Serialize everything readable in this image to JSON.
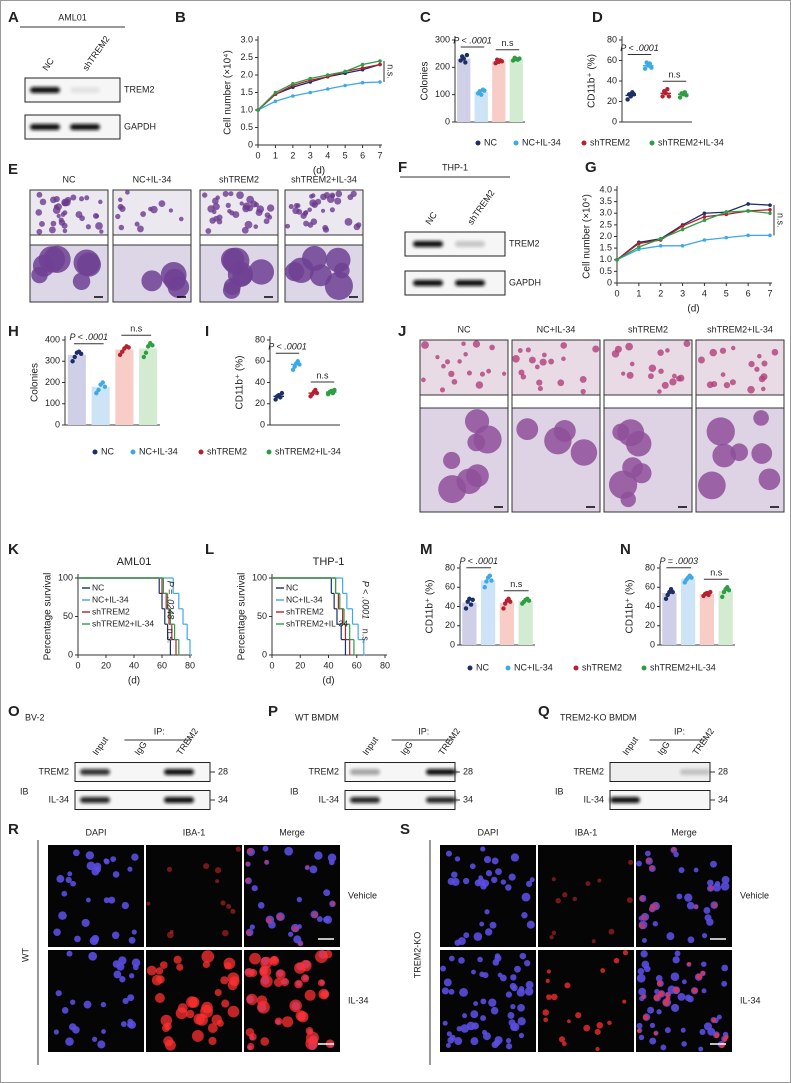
{
  "panels": [
    "A",
    "B",
    "C",
    "D",
    "E",
    "F",
    "G",
    "H",
    "I",
    "J",
    "K",
    "L",
    "M",
    "N",
    "O",
    "P",
    "Q",
    "R",
    "S"
  ],
  "groups": {
    "names": [
      "NC",
      "NC+IL-34",
      "shTREM2",
      "shTREM2+IL-34"
    ],
    "dot_colors": [
      "#1b2f66",
      "#3fa9e8",
      "#b81f2f",
      "#2e9e45"
    ],
    "bar_colors": [
      "#cfd0e8",
      "#cde4f6",
      "#f8cdc7",
      "#d3ecd1"
    ]
  },
  "chart_data": [
    {
      "type": "line",
      "ylabel": "Cell number (×10⁴)",
      "xlabel": "(d)",
      "x": [
        0,
        1,
        2,
        3,
        4,
        5,
        6,
        7
      ],
      "xlim": [
        0,
        7
      ],
      "xticks": [
        0,
        1,
        2,
        3,
        4,
        5,
        6,
        7
      ],
      "ylim": [
        0,
        3.0
      ],
      "yticks": [
        0,
        0.5,
        {
          "value": 1.0,
          "label": "1.0"
        },
        1.5,
        {
          "value": 2.0,
          "label": "2.0"
        },
        2.5,
        {
          "value": 3.0,
          "label": "3.0"
        }
      ],
      "series": [
        {
          "color": "#1b2f66",
          "values": [
            1,
            1.45,
            1.65,
            1.8,
            1.95,
            2.05,
            2.15,
            2.3
          ]
        },
        {
          "color": "#3fa9e8",
          "values": [
            1,
            1.25,
            1.4,
            1.5,
            1.6,
            1.7,
            1.78,
            1.8
          ]
        },
        {
          "color": "#b81f2f",
          "values": [
            1,
            1.45,
            1.7,
            1.85,
            1.95,
            2.1,
            2.2,
            2.3
          ]
        },
        {
          "color": "#2e9e45",
          "values": [
            1,
            1.5,
            1.75,
            1.9,
            2.0,
            2.1,
            2.3,
            2.4
          ]
        }
      ],
      "annotations": [
        "n.s."
      ]
    },
    {
      "type": "bar",
      "ylabel": "Colonies",
      "ylim": [
        0,
        300
      ],
      "yticks": [
        0,
        100,
        200,
        300
      ],
      "values": [
        232,
        110,
        222,
        230
      ],
      "points": [
        [
          225,
          240,
          232,
          218,
          245
        ],
        [
          105,
          112,
          100,
          118,
          115
        ],
        [
          215,
          228,
          220,
          225,
          222
        ],
        [
          225,
          235,
          230,
          228,
          232
        ]
      ],
      "annotations": [
        "P < .0001",
        "n.s"
      ]
    },
    {
      "type": "dot",
      "ylabel": "CD11b⁺ (%)",
      "ylim": [
        0,
        80
      ],
      "yticks": [
        0,
        20,
        40,
        60,
        80
      ],
      "values": [
        26,
        55,
        28,
        27
      ],
      "points": [
        [
          22,
          27,
          25,
          29,
          27
        ],
        [
          52,
          58,
          55,
          57,
          53
        ],
        [
          25,
          30,
          28,
          32,
          25
        ],
        [
          24,
          28,
          27,
          29,
          26
        ]
      ],
      "annotations": [
        "P < .0001",
        "n.s"
      ]
    },
    {
      "type": "line",
      "ylabel": "Cell number (×10⁴)",
      "xlabel": "(d)",
      "x": [
        0,
        1,
        2,
        3,
        4,
        5,
        6,
        7
      ],
      "xlim": [
        0,
        7
      ],
      "xticks": [
        0,
        1,
        2,
        3,
        4,
        5,
        6,
        7
      ],
      "ylim": [
        0,
        4.0
      ],
      "yticks": [
        0,
        0.5,
        {
          "value": 1.0,
          "label": "1.0"
        },
        1.5,
        {
          "value": 2.0,
          "label": "2.0"
        },
        2.5,
        {
          "value": 3.0,
          "label": "3.0"
        },
        3.5,
        {
          "value": 4.0,
          "label": "4.0"
        }
      ],
      "series": [
        {
          "color": "#1b2f66",
          "values": [
            1,
            1.75,
            1.9,
            2.5,
            3.0,
            3.05,
            3.4,
            3.35
          ]
        },
        {
          "color": "#3fa9e8",
          "values": [
            1,
            1.45,
            1.6,
            1.6,
            1.85,
            1.95,
            2.05,
            2.05
          ]
        },
        {
          "color": "#b81f2f",
          "values": [
            1,
            1.7,
            1.85,
            2.45,
            2.85,
            2.95,
            3.1,
            3.15
          ]
        },
        {
          "color": "#2e9e45",
          "values": [
            1,
            1.55,
            1.9,
            2.3,
            2.7,
            3.05,
            3.1,
            3.0
          ]
        }
      ],
      "annotations": [
        "n.s."
      ]
    },
    {
      "type": "bar",
      "ylabel": "Colonies",
      "ylim": [
        0,
        400
      ],
      "yticks": [
        0,
        100,
        200,
        300,
        400
      ],
      "values": [
        330,
        180,
        355,
        360
      ],
      "points": [
        [
          300,
          320,
          340,
          345,
          335
        ],
        [
          150,
          165,
          190,
          200,
          180
        ],
        [
          330,
          345,
          360,
          370,
          365
        ],
        [
          320,
          340,
          370,
          385,
          375
        ]
      ],
      "annotations": [
        "P < .0001",
        "n.s"
      ]
    },
    {
      "type": "dot",
      "ylabel": "CD11b⁺ (%)",
      "ylim": [
        0,
        80
      ],
      "yticks": [
        0,
        20,
        40,
        60,
        80
      ],
      "values": [
        27,
        57,
        30,
        31
      ],
      "points": [
        [
          24,
          27,
          28,
          26,
          30
        ],
        [
          52,
          55,
          58,
          60,
          57
        ],
        [
          27,
          29,
          31,
          33,
          30
        ],
        [
          29,
          31,
          32,
          30,
          33
        ]
      ],
      "annotations": [
        "P < .0001",
        "n.s"
      ]
    },
    {
      "type": "survival",
      "title": "AML01",
      "ylabel": "Percentage survival",
      "xlabel": "(d)",
      "xlim": [
        0,
        80
      ],
      "xticks": [
        0,
        20,
        40,
        60,
        80
      ],
      "ylim": [
        0,
        100
      ],
      "yticks": [
        0,
        50,
        100
      ],
      "series": [
        {
          "color": "#1b2f66",
          "x": [
            0,
            58,
            60,
            62,
            64,
            66
          ],
          "values": [
            100,
            80,
            60,
            40,
            20,
            0
          ]
        },
        {
          "color": "#3fa9e8",
          "x": [
            0,
            68,
            72,
            75,
            78,
            80
          ],
          "values": [
            100,
            80,
            60,
            40,
            20,
            0
          ]
        },
        {
          "color": "#b81f2f",
          "x": [
            0,
            60,
            63,
            65,
            67,
            70
          ],
          "values": [
            100,
            80,
            60,
            40,
            20,
            0
          ]
        },
        {
          "color": "#2e9e45",
          "x": [
            0,
            61,
            64,
            66,
            69,
            72
          ],
          "values": [
            100,
            80,
            60,
            40,
            20,
            0
          ]
        }
      ],
      "annotations": [
        "P = .0248",
        "n.s."
      ]
    },
    {
      "type": "survival",
      "title": "THP-1",
      "ylabel": "Percentage survival",
      "xlabel": "(d)",
      "xlim": [
        0,
        80
      ],
      "xticks": [
        0,
        20,
        40,
        60,
        80
      ],
      "ylim": [
        0,
        100
      ],
      "yticks": [
        0,
        50,
        100
      ],
      "series": [
        {
          "color": "#1b2f66",
          "x": [
            0,
            42,
            44,
            46,
            49,
            52
          ],
          "values": [
            100,
            80,
            60,
            40,
            20,
            0
          ]
        },
        {
          "color": "#3fa9e8",
          "x": [
            0,
            50,
            53,
            57,
            61,
            65
          ],
          "values": [
            100,
            80,
            60,
            40,
            20,
            0
          ]
        },
        {
          "color": "#b81f2f",
          "x": [
            0,
            45,
            47,
            50,
            52,
            55
          ],
          "values": [
            100,
            80,
            60,
            40,
            20,
            0
          ]
        },
        {
          "color": "#2e9e45",
          "x": [
            0,
            45,
            48,
            51,
            55,
            58
          ],
          "values": [
            100,
            80,
            60,
            40,
            20,
            0
          ]
        }
      ],
      "annotations": [
        "P < .0001",
        "n.s."
      ]
    },
    {
      "type": "bar",
      "ylabel": "CD11b⁺ (%)",
      "ylim": [
        0,
        80
      ],
      "yticks": [
        0,
        20,
        40,
        60,
        80
      ],
      "values": [
        44,
        67,
        44,
        46
      ],
      "points": [
        [
          38,
          45,
          48,
          42,
          47
        ],
        [
          60,
          66,
          70,
          72,
          67
        ],
        [
          38,
          43,
          46,
          48,
          45
        ],
        [
          43,
          45,
          47,
          48,
          46
        ]
      ],
      "annotations": [
        "P < .0001",
        "n.s"
      ]
    },
    {
      "type": "bar",
      "ylabel": "CD11b⁺ (%)",
      "ylim": [
        0,
        80
      ],
      "yticks": [
        0,
        20,
        40,
        60,
        80
      ],
      "values": [
        54,
        69,
        53,
        56
      ],
      "points": [
        [
          48,
          52,
          55,
          58,
          55
        ],
        [
          65,
          68,
          70,
          72,
          70
        ],
        [
          51,
          53,
          54,
          52,
          55
        ],
        [
          50,
          55,
          58,
          60,
          57
        ]
      ],
      "annotations": [
        "P = .0003",
        "n.s"
      ]
    }
  ],
  "blots": [
    {
      "cell": "AML01",
      "lanes": [
        "NC",
        "shTREM2"
      ],
      "rows": [
        "TREM2",
        "GAPDH"
      ]
    },
    {
      "cell": "THP-1",
      "lanes": [
        "NC",
        "shTREM2"
      ],
      "rows": [
        "TREM2",
        "GAPDH"
      ]
    },
    {
      "cell": "BV-2",
      "ip": "IP:",
      "lanes": [
        "Input",
        "IgG",
        "TREM2"
      ],
      "rows": [
        "TREM2",
        "IL-34"
      ],
      "markers": [
        "28",
        "34"
      ],
      "side": "IB"
    },
    {
      "cell": "WT BMDM",
      "ip": "IP:",
      "lanes": [
        "Input",
        "IgG",
        "TREM2"
      ],
      "rows": [
        "TREM2",
        "IL-34"
      ],
      "markers": [
        "28",
        "34"
      ],
      "side": "IB"
    },
    {
      "cell": "TREM2-KO BMDM",
      "ip": "IP:",
      "lanes": [
        "Input",
        "IgG",
        "TREM2"
      ],
      "rows": [
        "TREM2",
        "IL-34"
      ],
      "markers": [
        "28",
        "34"
      ],
      "side": "IB"
    }
  ],
  "fluorescence": [
    {
      "columns": [
        "DAPI",
        "IBA-1",
        "Merge"
      ],
      "rows": [
        "Vehicle",
        "IL-34"
      ],
      "side": "WT"
    },
    {
      "columns": [
        "DAPI",
        "IBA-1",
        "Merge"
      ],
      "rows": [
        "Vehicle",
        "IL-34"
      ],
      "side": "TREM2-KO"
    }
  ]
}
